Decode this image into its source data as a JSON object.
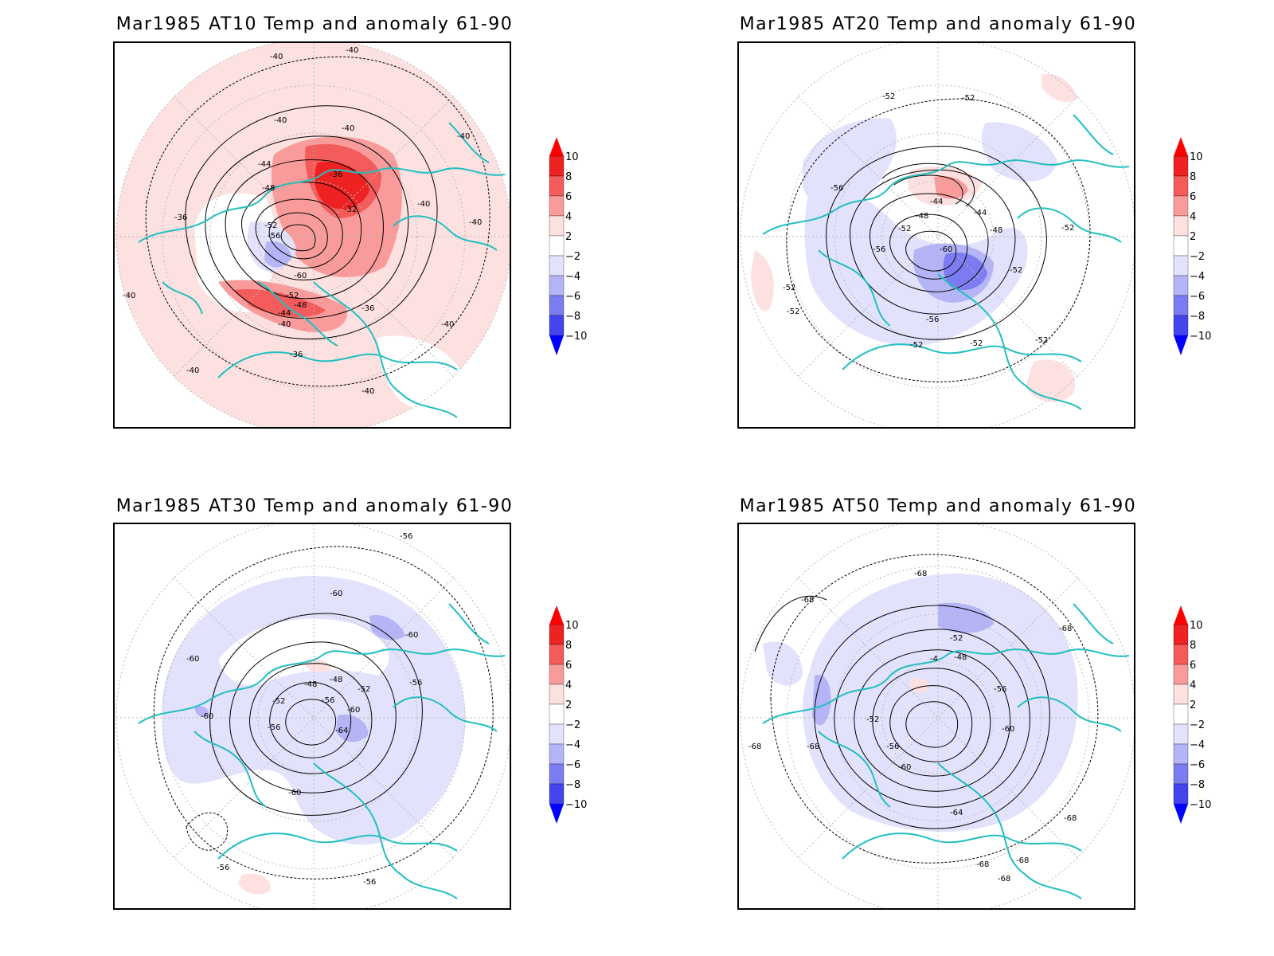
{
  "colors": {
    "coastline": "#22bfbf",
    "grid": "#b9b9b9",
    "contour": "#000000"
  },
  "colorbar": {
    "labels": [
      "10",
      "8",
      "6",
      "4",
      "2",
      "−2",
      "−4",
      "−6",
      "−8",
      "−10"
    ],
    "colors": [
      "#ff0000",
      "#ee2222",
      "#f45b5b",
      "#f99b9b",
      "#fde0e0",
      "#ffffff",
      "#e2e2fc",
      "#b4b4f6",
      "#7c7cf2",
      "#4545f0",
      "#0000ff"
    ]
  },
  "panels": [
    {
      "title": "Mar1985 AT10 Temp and anomaly 61-90",
      "contour_labels": [
        "-40",
        "-40",
        "-40",
        "-40",
        "-40",
        "-40",
        "-40",
        "-40",
        "-44",
        "-36",
        "-48",
        "-32",
        "-36",
        "-52",
        "-56",
        "-60",
        "-52",
        "-48",
        "-44",
        "-40",
        "-36",
        "-36",
        "-40",
        "-40",
        "-40"
      ]
    },
    {
      "title": "Mar1985 AT20 Temp and anomaly 61-90",
      "contour_labels": [
        "-52",
        "-52",
        "-56",
        "-44",
        "-44",
        "-48",
        "-48",
        "-52",
        "-60",
        "-56",
        "-52",
        "-52",
        "-56",
        "-52",
        "-52",
        "-52",
        "-52",
        "-52"
      ]
    },
    {
      "title": "Mar1985 AT30 Temp and anomaly 61-90",
      "contour_labels": [
        "-56",
        "-60",
        "-60",
        "-60",
        "-48",
        "-48",
        "-52",
        "-56",
        "-52",
        "-56",
        "-60",
        "-64",
        "-56",
        "-60",
        "-60",
        "-56",
        "-56"
      ]
    },
    {
      "title": "Mar1985 AT50 Temp and anomaly 61-90",
      "contour_labels": [
        "-68",
        "-68",
        "-68",
        "-52",
        "-4",
        "-48",
        "-56",
        "-52",
        "-60",
        "-56",
        "-60",
        "-64",
        "-68",
        "-68",
        "-68",
        "-68",
        "-68",
        "-68"
      ]
    }
  ]
}
